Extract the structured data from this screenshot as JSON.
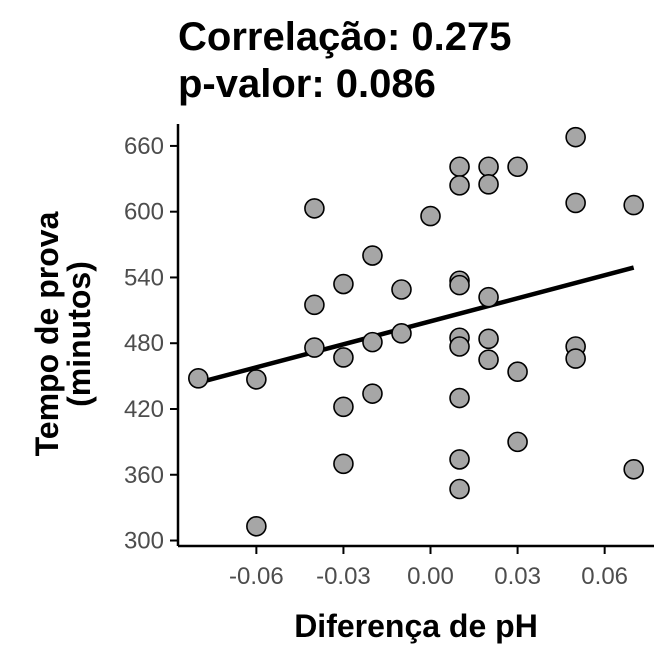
{
  "chart_data": {
    "type": "scatter",
    "title_lines": [
      "Correlação: 0.275",
      "p-valor: 0.086"
    ],
    "xlabel": "Diferença de pH",
    "ylabel_lines": [
      "Tempo de prova",
      "(minutos)"
    ],
    "xlim": [
      -0.087,
      0.077
    ],
    "ylim": [
      295,
      680
    ],
    "x_ticks": [
      -0.06,
      -0.03,
      0.0,
      0.03,
      0.06
    ],
    "x_tick_labels": [
      "-0.06",
      "-0.03",
      "0.00",
      "0.03",
      "0.06"
    ],
    "y_ticks": [
      300,
      360,
      420,
      480,
      540,
      600,
      660
    ],
    "y_tick_labels": [
      "300",
      "360",
      "420",
      "480",
      "540",
      "600",
      "660"
    ],
    "grid": false,
    "colors": {
      "point_fill": "#a6a6a6",
      "point_stroke": "#000000",
      "line": "#000000",
      "tick_label": "#4d4d4d"
    },
    "points": [
      [
        -0.08,
        448
      ],
      [
        -0.06,
        447
      ],
      [
        -0.06,
        313
      ],
      [
        -0.04,
        603
      ],
      [
        -0.04,
        515
      ],
      [
        -0.04,
        476
      ],
      [
        -0.03,
        534
      ],
      [
        -0.03,
        467
      ],
      [
        -0.03,
        422
      ],
      [
        -0.03,
        370
      ],
      [
        -0.02,
        560
      ],
      [
        -0.02,
        481
      ],
      [
        -0.02,
        434
      ],
      [
        -0.01,
        529
      ],
      [
        -0.01,
        489
      ],
      [
        0.0,
        596
      ],
      [
        0.01,
        641
      ],
      [
        0.01,
        624
      ],
      [
        0.01,
        537
      ],
      [
        0.01,
        533
      ],
      [
        0.01,
        485
      ],
      [
        0.01,
        477
      ],
      [
        0.01,
        430
      ],
      [
        0.01,
        374
      ],
      [
        0.01,
        347
      ],
      [
        0.02,
        641
      ],
      [
        0.02,
        625
      ],
      [
        0.02,
        522
      ],
      [
        0.02,
        484
      ],
      [
        0.02,
        465
      ],
      [
        0.03,
        641
      ],
      [
        0.03,
        454
      ],
      [
        0.03,
        390
      ],
      [
        0.05,
        668
      ],
      [
        0.05,
        608
      ],
      [
        0.05,
        477
      ],
      [
        0.05,
        466
      ],
      [
        0.07,
        606
      ],
      [
        0.07,
        365
      ]
    ],
    "regression_line": {
      "x": [
        -0.08,
        0.07
      ],
      "y": [
        444,
        549
      ]
    }
  }
}
